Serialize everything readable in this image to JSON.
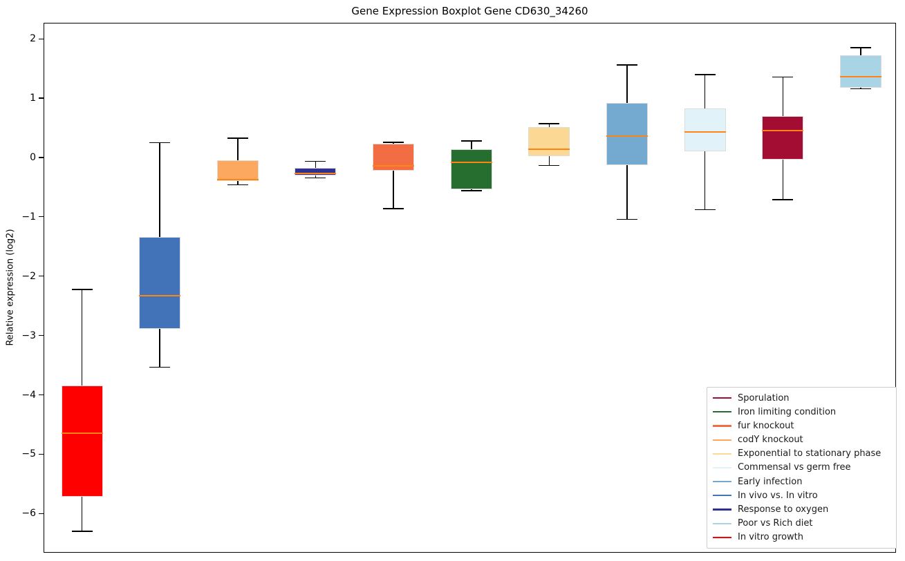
{
  "chart_data": {
    "type": "boxplot",
    "title": "Gene Expression Boxplot Gene CD630_34260",
    "ylabel": "Relative expression (log2)",
    "xlabel": "",
    "ylim": [
      -6.66,
      2.27
    ],
    "grid": false,
    "ytick_values": [
      2,
      1,
      0,
      -1,
      -2,
      -3,
      -4,
      -5,
      -6
    ],
    "yticklabels": [
      "2",
      "1",
      "0",
      "−1",
      "−2",
      "−3",
      "−4",
      "−5",
      "−6"
    ],
    "median_color": "#FF8414",
    "whisker_color": "#000000",
    "box_edge_color": "#dcdcdc",
    "boxes": [
      {
        "label": "In vitro growth",
        "color": "#FF0000",
        "whislo": -6.29,
        "q1": -5.71,
        "med": -4.63,
        "q3": -3.83,
        "whishi": -2.21
      },
      {
        "label": "In vivo vs. In vitro",
        "color": "#4273B8",
        "whislo": -3.52,
        "q1": -2.88,
        "med": -2.32,
        "q3": -1.33,
        "whishi": 0.26
      },
      {
        "label": "codY knockout",
        "color": "#FCA95F",
        "whislo": -0.45,
        "q1": -0.39,
        "med": -0.36,
        "q3": -0.04,
        "whishi": 0.34
      },
      {
        "label": "Response to oxygen",
        "color": "#2F3191",
        "whislo": -0.33,
        "q1": -0.29,
        "med": -0.26,
        "q3": -0.16,
        "whishi": -0.05
      },
      {
        "label": "fur knockout",
        "color": "#F26D43",
        "whislo": -0.85,
        "q1": -0.21,
        "med": -0.13,
        "q3": 0.24,
        "whishi": 0.27
      },
      {
        "label": "Iron limiting condition",
        "color": "#256E2F",
        "whislo": -0.55,
        "q1": -0.53,
        "med": -0.07,
        "q3": 0.15,
        "whishi": 0.29
      },
      {
        "label": "Exponential to stationary phase",
        "color": "#FBD893",
        "whislo": -0.12,
        "q1": 0.04,
        "med": 0.15,
        "q3": 0.52,
        "whishi": 0.58
      },
      {
        "label": "Early infection",
        "color": "#74A9D0",
        "whislo": -1.03,
        "q1": -0.12,
        "med": 0.37,
        "q3": 0.93,
        "whishi": 1.57
      },
      {
        "label": "Commensal vs germ free",
        "color": "#E1F2F8",
        "whislo": -0.87,
        "q1": 0.12,
        "med": 0.44,
        "q3": 0.84,
        "whishi": 1.41
      },
      {
        "label": "Sporulation",
        "color": "#A30C33",
        "whislo": -0.7,
        "q1": -0.02,
        "med": 0.46,
        "q3": 0.71,
        "whishi": 1.37
      },
      {
        "label": "Poor vs Rich diet",
        "color": "#A9D4E5",
        "whislo": 1.17,
        "q1": 1.19,
        "med": 1.37,
        "q3": 1.74,
        "whishi": 1.86
      }
    ],
    "legend": {
      "position": "lower right",
      "entries": [
        {
          "label": "Sporulation",
          "color": "#A30C33"
        },
        {
          "label": "Iron limiting condition",
          "color": "#256E2F"
        },
        {
          "label": "fur knockout",
          "color": "#F26D43"
        },
        {
          "label": "codY knockout",
          "color": "#FCA95F"
        },
        {
          "label": "Exponential to stationary phase",
          "color": "#FBD893"
        },
        {
          "label": "Commensal vs germ free",
          "color": "#E1F2F8"
        },
        {
          "label": "Early infection",
          "color": "#74A9D0"
        },
        {
          "label": "In vivo vs. In vitro",
          "color": "#4273B8"
        },
        {
          "label": "Response to oxygen",
          "color": "#2F3191"
        },
        {
          "label": "Poor vs Rich diet",
          "color": "#A9D4E5"
        },
        {
          "label": "In vitro growth",
          "color": "#FF0000"
        }
      ]
    }
  }
}
